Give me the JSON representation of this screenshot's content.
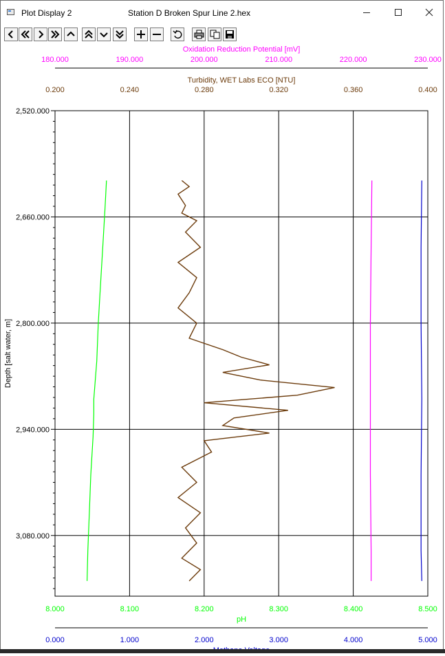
{
  "window": {
    "app_title": "Plot Display 2",
    "document_title": "Station D Broken Spur Line 2.hex"
  },
  "toolbar": {
    "buttons": [
      {
        "name": "step-left-button",
        "icon": "chevron-left-icon"
      },
      {
        "name": "jump-left-button",
        "icon": "double-chevron-left-icon"
      },
      {
        "name": "step-right-button",
        "icon": "chevron-right-icon"
      },
      {
        "name": "jump-right-button",
        "icon": "double-chevron-right-icon"
      },
      {
        "name": "step-up-button",
        "icon": "chevron-up-icon"
      },
      {
        "name": "jump-up-button",
        "icon": "double-chevron-up-icon"
      },
      {
        "name": "step-down-button",
        "icon": "chevron-down-icon"
      },
      {
        "name": "jump-down-button",
        "icon": "double-chevron-down-icon"
      },
      {
        "name": "zoom-in-button",
        "icon": "plus-icon"
      },
      {
        "name": "zoom-out-button",
        "icon": "minus-icon"
      },
      {
        "name": "reset-button",
        "icon": "undo-icon"
      },
      {
        "name": "print-button",
        "icon": "printer-icon"
      },
      {
        "name": "copy-button",
        "icon": "copy-icon"
      },
      {
        "name": "save-button",
        "icon": "save-icon"
      }
    ]
  },
  "chart_data": {
    "type": "line",
    "orientation": "vertical-profile",
    "y_axis": {
      "label": "Depth [salt water, m]",
      "range": [
        2520,
        3160
      ],
      "reversed": true,
      "ticks": [
        "2,520.000",
        "2,660.000",
        "2,800.000",
        "2,940.000",
        "3,080.000"
      ],
      "tick_values": [
        2520,
        2660,
        2800,
        2940,
        3080
      ]
    },
    "x_axes": [
      {
        "id": "orp",
        "label": "Oxidation Reduction Potential [mV]",
        "position": "top-outer",
        "color": "#ff00ff",
        "range": [
          180000,
          230000
        ],
        "ticks": [
          "180.000",
          "190.000",
          "200.000",
          "210.000",
          "220.000",
          "230.000"
        ]
      },
      {
        "id": "turbidity",
        "label": "Turbidity, WET Labs ECO [NTU]",
        "position": "top-inner",
        "color": "#6b3a0a",
        "range": [
          0.2,
          0.4
        ],
        "ticks": [
          "0.200",
          "0.240",
          "0.280",
          "0.320",
          "0.360",
          "0.400"
        ]
      },
      {
        "id": "ph",
        "label": "pH",
        "position": "bottom-inner",
        "color": "#00ff00",
        "range": [
          8.0,
          8.5
        ],
        "ticks": [
          "8.000",
          "8.100",
          "8.200",
          "8.300",
          "8.400",
          "8.500"
        ]
      },
      {
        "id": "methane",
        "label": "Methane Voltage",
        "position": "bottom-outer",
        "color": "#0000cc",
        "range": [
          0.0,
          5.0
        ],
        "ticks": [
          "0.000",
          "1.000",
          "2.000",
          "3.000",
          "4.000",
          "5.000"
        ]
      }
    ],
    "grid": true,
    "series": [
      {
        "axis": "ph",
        "color": "#00ff00",
        "depth": [
          2612,
          2650,
          2700,
          2750,
          2800,
          2850,
          2900,
          2920,
          2950,
          3000,
          3050,
          3100,
          3140
        ],
        "values": [
          8.069,
          8.067,
          8.064,
          8.061,
          8.058,
          8.056,
          8.052,
          8.052,
          8.051,
          8.048,
          8.046,
          8.044,
          8.043
        ]
      },
      {
        "axis": "turbidity",
        "color": "#6b3a0a",
        "depth": [
          2612,
          2620,
          2630,
          2645,
          2655,
          2665,
          2680,
          2700,
          2720,
          2740,
          2760,
          2780,
          2800,
          2820,
          2835,
          2845,
          2855,
          2865,
          2875,
          2885,
          2895,
          2900,
          2905,
          2915,
          2925,
          2935,
          2945,
          2955,
          2970,
          2990,
          3010,
          3030,
          3050,
          3070,
          3090,
          3110,
          3125,
          3140
        ],
        "values": [
          0.268,
          0.272,
          0.266,
          0.27,
          0.268,
          0.276,
          0.27,
          0.278,
          0.266,
          0.276,
          0.272,
          0.266,
          0.276,
          0.272,
          0.29,
          0.3,
          0.315,
          0.29,
          0.31,
          0.35,
          0.33,
          0.305,
          0.28,
          0.325,
          0.296,
          0.29,
          0.315,
          0.28,
          0.284,
          0.268,
          0.276,
          0.266,
          0.278,
          0.27,
          0.276,
          0.268,
          0.278,
          0.272
        ]
      },
      {
        "axis": "orp",
        "color": "#ff00ff",
        "depth": [
          2612,
          2700,
          2800,
          2900,
          3000,
          3100,
          3140
        ],
        "values": [
          222500,
          222400,
          222300,
          222300,
          222300,
          222400,
          222400
        ]
      },
      {
        "axis": "methane",
        "color": "#0000cc",
        "depth": [
          2612,
          2700,
          2800,
          2900,
          3000,
          3100,
          3140
        ],
        "values": [
          4.92,
          4.91,
          4.91,
          4.92,
          4.91,
          4.91,
          4.92
        ]
      }
    ]
  }
}
